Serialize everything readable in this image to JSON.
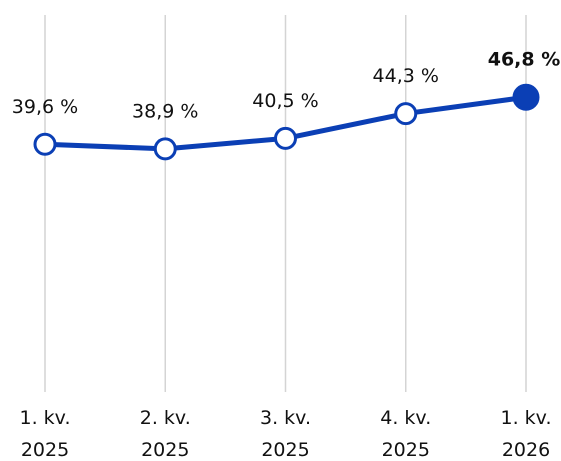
{
  "chart_data": {
    "type": "line",
    "categories": [
      "1. kv. 2025",
      "2. kv. 2025",
      "3. kv. 2025",
      "4. kv. 2025",
      "1. kv. 2026"
    ],
    "values": [
      39.6,
      38.9,
      40.5,
      44.3,
      46.8
    ],
    "value_labels": [
      "39,6 %",
      "38,9 %",
      "40,5 %",
      "44,3 %",
      "46,8 %"
    ],
    "color": "#0b3fb5",
    "ylim": [
      0,
      60
    ],
    "highlight_index": 4
  }
}
